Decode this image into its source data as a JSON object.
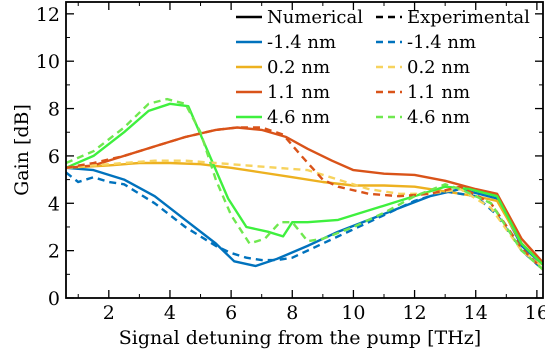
{
  "chart_data": {
    "type": "line",
    "xlabel": "Signal detuning from the pump [THz]",
    "ylabel": "Gain [dB]",
    "xlim": [
      0.6,
      16.2
    ],
    "ylim": [
      0,
      12.5
    ],
    "xticks": [
      2,
      4,
      6,
      8,
      10,
      12,
      14,
      16
    ],
    "yticks": [
      0,
      2,
      4,
      6,
      8,
      10,
      12
    ],
    "grid": false,
    "legend": {
      "position": "top-right",
      "headers": [
        "Numerical",
        "Experimental"
      ]
    },
    "series": [
      {
        "name": "-1.4 nm",
        "group": "Numerical",
        "color": "#0072bd",
        "dash": "solid",
        "x": [
          0.6,
          1.5,
          2.5,
          3.5,
          4.5,
          5.5,
          6.1,
          6.8,
          7.5,
          8.5,
          9.5,
          10.5,
          11.5,
          12.5,
          13.5,
          14.7,
          15.5,
          16.2
        ],
        "y": [
          5.5,
          5.4,
          5.0,
          4.3,
          3.3,
          2.3,
          1.55,
          1.35,
          1.65,
          2.2,
          2.8,
          3.3,
          3.8,
          4.3,
          4.6,
          4.2,
          2.2,
          1.4
        ]
      },
      {
        "name": "0.2 nm",
        "group": "Numerical",
        "color": "#edb120",
        "dash": "solid",
        "x": [
          0.6,
          2.0,
          3.0,
          4.0,
          5.0,
          6.0,
          7.0,
          8.0,
          9.0,
          10.0,
          11.0,
          12.0,
          13.0,
          14.0,
          14.7,
          15.5,
          16.2
        ],
        "y": [
          5.5,
          5.6,
          5.7,
          5.7,
          5.65,
          5.5,
          5.3,
          5.1,
          4.9,
          4.75,
          4.75,
          4.7,
          4.5,
          4.3,
          4.1,
          2.3,
          1.4
        ]
      },
      {
        "name": "1.1 nm",
        "group": "Numerical",
        "color": "#d95319",
        "dash": "solid",
        "x": [
          0.6,
          1.5,
          2.5,
          3.5,
          4.5,
          5.5,
          6.2,
          7.0,
          7.8,
          8.5,
          9.3,
          10.0,
          11.0,
          12.0,
          13.0,
          14.0,
          14.7,
          15.5,
          16.2
        ],
        "y": [
          5.5,
          5.6,
          6.0,
          6.4,
          6.8,
          7.1,
          7.2,
          7.1,
          6.8,
          6.3,
          5.8,
          5.4,
          5.25,
          5.2,
          4.95,
          4.6,
          4.4,
          2.5,
          1.5
        ]
      },
      {
        "name": "4.6 nm",
        "group": "Numerical",
        "color": "#3ef03e",
        "dash": "solid",
        "x": [
          0.6,
          1.5,
          2.5,
          3.3,
          4.0,
          4.6,
          5.2,
          5.9,
          6.5,
          7.2,
          7.7,
          8.0,
          8.5,
          9.5,
          10.5,
          11.5,
          12.5,
          13.0,
          13.8,
          14.7,
          15.5,
          16.2
        ],
        "y": [
          5.5,
          6.0,
          7.0,
          7.9,
          8.2,
          8.1,
          6.3,
          4.2,
          3.0,
          2.8,
          2.6,
          3.2,
          3.2,
          3.3,
          3.7,
          4.1,
          4.5,
          4.7,
          4.6,
          4.3,
          2.3,
          1.4
        ]
      },
      {
        "name": "-1.4 nm",
        "group": "Experimental",
        "color": "#0072bd",
        "dash": "dashed",
        "x": [
          0.6,
          1.0,
          1.5,
          2.0,
          2.5,
          3.0,
          3.5,
          4.0,
          4.5,
          5.0,
          5.5,
          6.0,
          6.5,
          7.0,
          7.5,
          8.0,
          8.5,
          9.0,
          9.5,
          10.0,
          11.0,
          12.0,
          13.0,
          14.0,
          14.7,
          15.5,
          16.2
        ],
        "y": [
          5.3,
          4.9,
          5.1,
          4.9,
          4.8,
          4.4,
          4.0,
          3.5,
          3.0,
          2.6,
          2.2,
          1.9,
          1.7,
          1.6,
          1.6,
          1.7,
          2.0,
          2.3,
          2.6,
          2.9,
          3.5,
          4.1,
          4.5,
          4.3,
          3.5,
          2.0,
          1.2
        ]
      },
      {
        "name": "0.2 nm",
        "group": "Experimental",
        "color": "#f7d35e",
        "dash": "dashed",
        "x": [
          0.6,
          1.5,
          2.5,
          3.5,
          4.5,
          5.5,
          6.5,
          7.5,
          8.5,
          9.5,
          10.5,
          11.5,
          12.5,
          13.5,
          14.5,
          15.5,
          16.2
        ],
        "y": [
          5.5,
          5.6,
          5.7,
          5.8,
          5.8,
          5.7,
          5.6,
          5.5,
          5.4,
          5.0,
          4.6,
          4.4,
          4.4,
          4.6,
          3.8,
          2.0,
          1.3
        ]
      },
      {
        "name": "1.1 nm",
        "group": "Experimental",
        "color": "#d95319",
        "dash": "dashed",
        "x": [
          0.6,
          1.5,
          2.5,
          3.5,
          4.5,
          5.5,
          6.2,
          7.0,
          7.7,
          8.3,
          9.0,
          9.5,
          10.5,
          11.5,
          12.5,
          13.5,
          14.5,
          15.5,
          16.2
        ],
        "y": [
          5.5,
          5.7,
          6.0,
          6.4,
          6.8,
          7.1,
          7.2,
          7.2,
          6.9,
          6.0,
          5.0,
          4.7,
          4.4,
          4.3,
          4.4,
          4.7,
          4.0,
          2.1,
          1.2
        ]
      },
      {
        "name": "4.6 nm",
        "group": "Experimental",
        "color": "#6fe84f",
        "dash": "dashed",
        "x": [
          0.6,
          1.5,
          2.5,
          3.3,
          3.9,
          4.5,
          5.0,
          5.5,
          6.0,
          6.6,
          7.1,
          7.6,
          8.0,
          8.5,
          9.0,
          10.0,
          11.0,
          12.0,
          13.0,
          13.5,
          14.5,
          15.5,
          16.2
        ],
        "y": [
          5.7,
          6.2,
          7.2,
          8.2,
          8.4,
          8.2,
          7.0,
          5.0,
          3.5,
          2.3,
          2.5,
          3.2,
          3.2,
          2.4,
          2.5,
          3.0,
          3.6,
          4.3,
          4.8,
          4.6,
          4.0,
          2.0,
          1.2
        ]
      }
    ]
  }
}
